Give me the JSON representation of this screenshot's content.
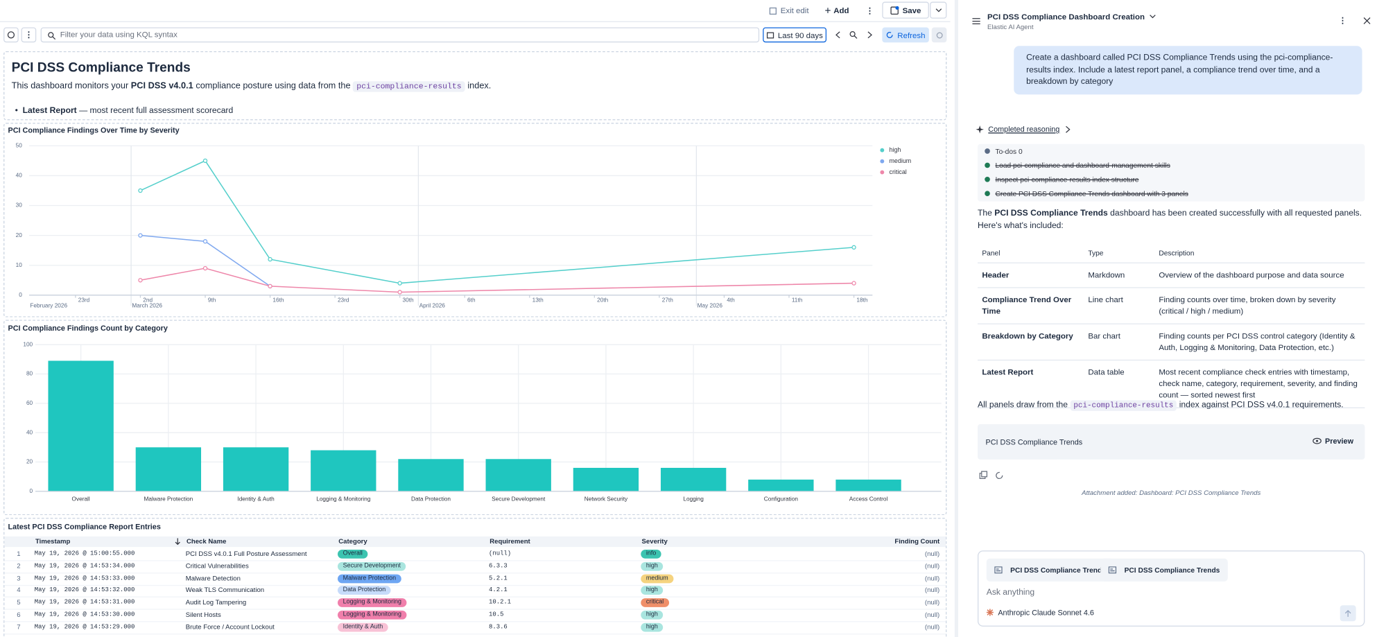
{
  "toolbar": {
    "exit_edit": "Exit edit",
    "add": "Add",
    "save": "Save",
    "query_placeholder": "Filter your data using KQL syntax",
    "time_range": "Last 90 days",
    "refresh": "Refresh"
  },
  "markdown_panel": {
    "title": "PCI DSS Compliance Trends",
    "intro_prefix": "This dashboard monitors your ",
    "intro_bold": "PCI DSS v4.0.1",
    "intro_mid": " compliance posture using data from the ",
    "intro_code": "pci-compliance-results",
    "intro_suffix": " index.",
    "bullet_bold": "Latest Report",
    "bullet_text": " — most recent full assessment scorecard"
  },
  "chart_data": [
    {
      "type": "line",
      "title": "PCI Compliance Findings Over Time by Severity",
      "x": [
        "2026-03-02",
        "2026-03-09",
        "2026-03-16",
        "2026-03-30",
        "2026-05-18"
      ],
      "series": [
        {
          "name": "high",
          "color": "#54cfcb",
          "values": [
            35,
            45,
            12,
            4,
            16
          ]
        },
        {
          "name": "medium",
          "color": "#7fa8ef",
          "values": [
            20,
            18,
            3,
            null,
            null
          ]
        },
        {
          "name": "critical",
          "color": "#ee87aa",
          "values": [
            5,
            9,
            3,
            1,
            4
          ]
        }
      ],
      "xlim": [
        "2026-02-18",
        "2026-05-20"
      ],
      "xticks": [
        {
          "value": "2026-02-23",
          "label": "23rd"
        },
        {
          "value": "2026-03-02",
          "label": "2nd"
        },
        {
          "value": "2026-03-09",
          "label": "9th"
        },
        {
          "value": "2026-03-16",
          "label": "16th"
        },
        {
          "value": "2026-03-23",
          "label": "23rd"
        },
        {
          "value": "2026-03-30",
          "label": "30th"
        },
        {
          "value": "2026-04-06",
          "label": "6th"
        },
        {
          "value": "2026-04-13",
          "label": "13th"
        },
        {
          "value": "2026-04-20",
          "label": "20th"
        },
        {
          "value": "2026-04-27",
          "label": "27th"
        },
        {
          "value": "2026-05-04",
          "label": "4th"
        },
        {
          "value": "2026-05-11",
          "label": "11th"
        },
        {
          "value": "2026-05-18",
          "label": "18th"
        }
      ],
      "month_ticks": [
        {
          "value": "2026-02-01",
          "label": "February 2026"
        },
        {
          "value": "2026-03-01",
          "label": "March 2026"
        },
        {
          "value": "2026-04-01",
          "label": "April 2026"
        },
        {
          "value": "2026-05-01",
          "label": "May 2026"
        }
      ],
      "ylim": [
        0,
        50
      ],
      "yticks": [
        0,
        10,
        20,
        30,
        40,
        50
      ],
      "grid": true,
      "legend": "right"
    },
    {
      "type": "bar",
      "title": "PCI Compliance Findings Count by Category",
      "categories": [
        "Overall",
        "Malware Protection",
        "Identity & Auth",
        "Logging & Monitoring",
        "Data Protection",
        "Secure Development",
        "Network Security",
        "Logging",
        "Configuration",
        "Access Control"
      ],
      "values": [
        89,
        30,
        30,
        28,
        22,
        22,
        16,
        16,
        8,
        8
      ],
      "color": "#1fc6bf",
      "ylim": [
        0,
        100
      ],
      "yticks": [
        0,
        20,
        40,
        60,
        80,
        100
      ],
      "grid": true
    }
  ],
  "table": {
    "title": "Latest PCI DSS Compliance Report Entries",
    "columns": [
      "Timestamp",
      "Check Name",
      "Category",
      "Requirement",
      "Severity",
      "Finding Count"
    ],
    "rows": [
      [
        "1",
        "May 19, 2026 @ 15:00:55.000",
        "PCI DSS v4.0.1 Full Posture Assessment",
        "Overall",
        "(null)",
        "info",
        "(null)"
      ],
      [
        "2",
        "May 19, 2026 @ 14:53:34.000",
        "Critical Vulnerabilities",
        "Secure Development",
        "6.3.3",
        "high",
        "(null)"
      ],
      [
        "3",
        "May 19, 2026 @ 14:53:33.000",
        "Malware Detection",
        "Malware Protection",
        "5.2.1",
        "medium",
        "(null)"
      ],
      [
        "4",
        "May 19, 2026 @ 14:53:32.000",
        "Weak TLS Communication",
        "Data Protection",
        "4.2.1",
        "high",
        "(null)"
      ],
      [
        "5",
        "May 19, 2026 @ 14:53:31.000",
        "Audit Log Tampering",
        "Logging & Monitoring",
        "10.2.1",
        "critical",
        "(null)"
      ],
      [
        "6",
        "May 19, 2026 @ 14:53:30.000",
        "Silent Hosts",
        "Logging & Monitoring",
        "10.5",
        "high",
        "(null)"
      ],
      [
        "7",
        "May 19, 2026 @ 14:53:29.000",
        "Brute Force / Account Lockout",
        "Identity & Auth",
        "8.3.6",
        "high",
        "(null)"
      ]
    ],
    "category_colors": [
      "#3cc4b0",
      "#a9e5df",
      "#6ea6f3",
      "#c6dbfa",
      "#f07fab",
      "#f07fab",
      "#f8c2d6"
    ],
    "severity_colors": [
      "#3cc4b0",
      "#a9e5df",
      "#f5d37f",
      "#a9e5df",
      "#ef8f69",
      "#a9e5df",
      "#a9e5df"
    ]
  },
  "assistant": {
    "title": "PCI DSS Compliance Dashboard Creation",
    "subtitle": "Elastic AI Agent",
    "user_message": "Create a dashboard called PCI DSS Compliance Trends using the pci-compliance-results index. Include a latest report panel, a compliance trend over time, and a breakdown by category",
    "reasoning": "Completed reasoning",
    "todos": [
      {
        "text": "To-dos 0",
        "done": false
      },
      {
        "text": "Load pci-compliance and dashboard-management skills",
        "done": true
      },
      {
        "text": "Inspect pci-compliance-results index structure",
        "done": true
      },
      {
        "text": "Create PCI DSS Compliance Trends dashboard with 3 panels",
        "done": true
      }
    ],
    "response_prefix": "The ",
    "response_bold": "PCI DSS Compliance Trends",
    "response_suffix": " dashboard has been created successfully with all requested panels. Here's what's included:",
    "table": {
      "columns": [
        "Panel",
        "Type",
        "Description"
      ],
      "rows": [
        [
          "Header",
          "Markdown",
          "Overview of the dashboard purpose and data source"
        ],
        [
          "Compliance Trend Over Time",
          "Line chart",
          "Finding counts over time, broken down by severity (critical / high / medium)"
        ],
        [
          "Breakdown by Category",
          "Bar chart",
          "Finding counts per PCI DSS control category (Identity & Auth, Logging & Monitoring, Data Protection, etc.)"
        ],
        [
          "Latest Report",
          "Data table",
          "Most recent compliance check entries with timestamp, check name, category, requirement, severity, and finding count — sorted newest first"
        ]
      ]
    },
    "footer_prefix": "All panels draw from the ",
    "footer_code": "pci-compliance-results",
    "footer_suffix": " index against PCI DSS v4.0.1 requirements.",
    "attachment_title": "PCI DSS Compliance Trends",
    "preview": "Preview",
    "attachment_note": "Attachment added: Dashboard: PCI DSS Compliance Trends",
    "chips": [
      "PCI DSS Compliance Trends",
      "PCI DSS Compliance Trends"
    ],
    "input_placeholder": "Ask anything",
    "model": "Anthropic Claude Sonnet 4.6"
  }
}
